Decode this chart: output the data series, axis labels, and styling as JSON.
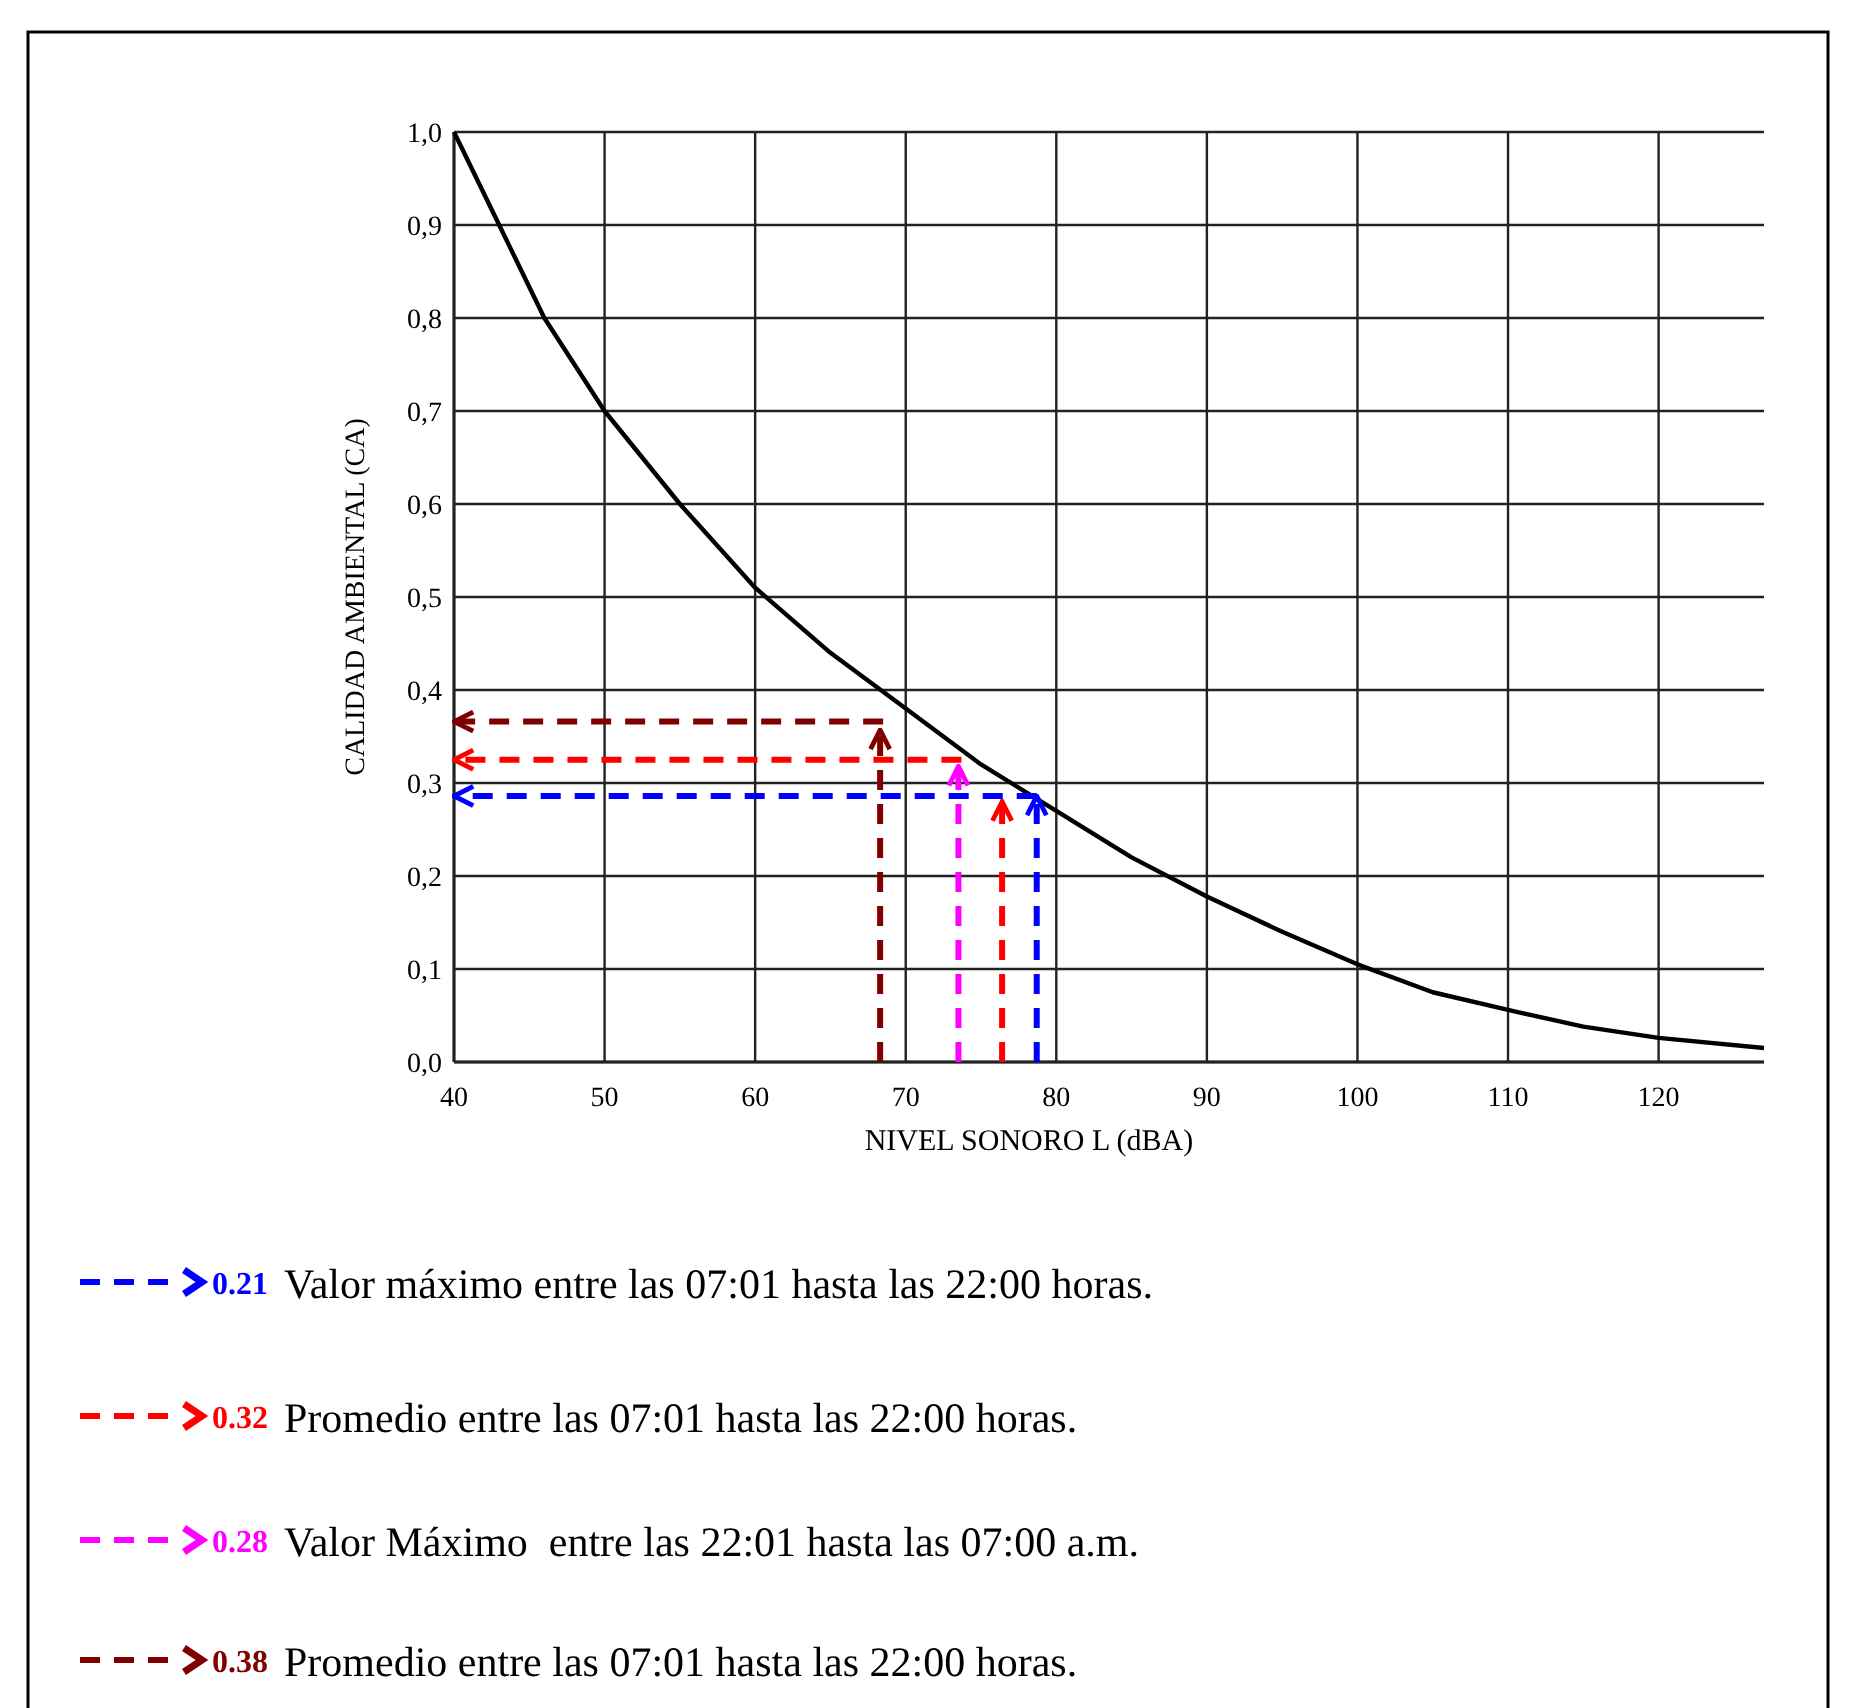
{
  "chart_data": {
    "type": "line",
    "xlabel": "NIVEL SONORO L (dBA)",
    "ylabel": "CALIDAD AMBIENTAL (CA)",
    "xlim": [
      40,
      127
    ],
    "xticks": [
      40,
      50,
      60,
      70,
      80,
      90,
      100,
      110,
      120
    ],
    "ylim": [
      0,
      1
    ],
    "yticks": [
      {
        "value": 0,
        "label": "0,0"
      },
      {
        "value": 0.1,
        "label": "0,1"
      },
      {
        "value": 0.2,
        "label": "0,2"
      },
      {
        "value": 0.3,
        "label": "0,3"
      },
      {
        "value": 0.4,
        "label": "0,4"
      },
      {
        "value": 0.5,
        "label": "0,5"
      },
      {
        "value": 0.6,
        "label": "0,6"
      },
      {
        "value": 0.7,
        "label": "0,7"
      },
      {
        "value": 0.8,
        "label": "0,8"
      },
      {
        "value": 0.9,
        "label": "0,9"
      },
      {
        "value": 1,
        "label": "1,0"
      }
    ],
    "grid": true,
    "legend": "bottom",
    "series": [
      {
        "color": "#000000",
        "line_style": "solid",
        "x": [
          40,
          43,
          46,
          50,
          55,
          60,
          65,
          70,
          75,
          78,
          80,
          85,
          90,
          95,
          100,
          105,
          110,
          115,
          120,
          127
        ],
        "values": [
          1.0,
          0.9,
          0.8,
          0.7,
          0.6,
          0.51,
          0.44,
          0.38,
          0.32,
          0.29,
          0.27,
          0.22,
          0.178,
          0.14,
          0.105,
          0.075,
          0.056,
          0.038,
          0.026,
          0.015
        ]
      },
      {
        "name": "Valor máximo entre las 07:01 hasta las 22:00 horas.",
        "color": "#0000ff",
        "line_style": "dashed",
        "x": [
          78.7,
          78.7
        ],
        "values": [
          0,
          0.286
        ]
      },
      {
        "color": "#0000ff",
        "line_style": "dashed",
        "x": [
          78.7,
          40
        ],
        "values": [
          0.286,
          0.286
        ]
      },
      {
        "name": "Promedio entre las 07:01 hasta las 22:00 horas.",
        "color": "#ff0000",
        "line_style": "dashed",
        "x": [
          76.4,
          76.4
        ],
        "values": [
          0,
          0.28
        ]
      },
      {
        "color": "#ff0000",
        "line_style": "dashed",
        "x": [
          73.7,
          40
        ],
        "values": [
          0.325,
          0.325
        ]
      },
      {
        "name": "Valor Máximo  entre las 22:01 hasta las 07:00 a.m.",
        "color": "#ff00ff",
        "line_style": "dashed",
        "x": [
          73.5,
          73.5
        ],
        "values": [
          0,
          0.318
        ]
      },
      {
        "name": "Promedio entre las 07:01 hasta las 22:00 horas.",
        "color": "#800000",
        "line_style": "dashed",
        "x": [
          68.3,
          68.3
        ],
        "values": [
          0,
          0.357
        ]
      },
      {
        "color": "#800000",
        "line_style": "dashed",
        "x": [
          68.5,
          40
        ],
        "values": [
          0.366,
          0.366
        ]
      }
    ],
    "annotations": [
      "0.21",
      "0.32",
      "0.28",
      "0.38"
    ]
  }
}
